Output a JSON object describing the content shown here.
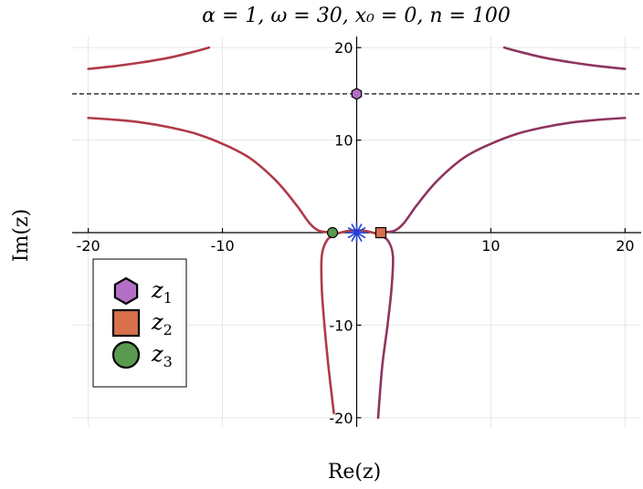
{
  "chart_data": {
    "type": "line",
    "title": "α = 1, ω = 30, x₀ = 0, n = 100",
    "xlabel": "Re(z)",
    "ylabel": "Im(z)",
    "xlim": [
      -21.2,
      21.2
    ],
    "ylim": [
      -21.0,
      21.2
    ],
    "x_ticks": [
      -20,
      -10,
      10,
      20
    ],
    "y_ticks": [
      20,
      10,
      -10,
      -20
    ],
    "x_tick_labels": [
      "-20",
      "-10",
      "10",
      "20"
    ],
    "y_tick_labels": [
      "20",
      "10",
      "-10",
      "-20"
    ],
    "grid": true,
    "reference_line": {
      "y": 15,
      "style": "dashed",
      "color": "#333333"
    },
    "contour_color": "#b03a48",
    "contour_color_alt": "#8e3560",
    "series": [
      {
        "points": [
          [
            -20,
            17.7
          ],
          [
            -18,
            18.0
          ],
          [
            -16,
            18.4
          ],
          [
            -14,
            18.9
          ],
          [
            -12,
            19.6
          ],
          [
            -11,
            20.0
          ]
        ]
      },
      {
        "points": [
          [
            11,
            20.0
          ],
          [
            12,
            19.6
          ],
          [
            14,
            18.9
          ],
          [
            16,
            18.4
          ],
          [
            18,
            18.0
          ],
          [
            20,
            17.7
          ]
        ]
      },
      {
        "points": [
          [
            -20,
            12.4
          ],
          [
            -18,
            12.2
          ],
          [
            -16,
            11.9
          ],
          [
            -14,
            11.4
          ],
          [
            -12,
            10.7
          ],
          [
            -10,
            9.6
          ],
          [
            -8,
            8.1
          ],
          [
            -6,
            5.6
          ],
          [
            -4.5,
            3.0
          ],
          [
            -3.5,
            1.0
          ],
          [
            -2.8,
            0.2
          ],
          [
            -2.0,
            0.05
          ]
        ]
      },
      {
        "points": [
          [
            2.0,
            0.05
          ],
          [
            2.8,
            0.2
          ],
          [
            3.5,
            1.0
          ],
          [
            4.5,
            3.0
          ],
          [
            6,
            5.6
          ],
          [
            8,
            8.1
          ],
          [
            10,
            9.6
          ],
          [
            12,
            10.7
          ],
          [
            14,
            11.4
          ],
          [
            16,
            11.9
          ],
          [
            18,
            12.2
          ],
          [
            20,
            12.4
          ]
        ]
      },
      {
        "points": [
          [
            -1.5,
            -0.1
          ],
          [
            -2.2,
            -0.8
          ],
          [
            -2.6,
            -2.5
          ],
          [
            -2.6,
            -6.0
          ],
          [
            -2.4,
            -10.0
          ],
          [
            -2.1,
            -14.5
          ],
          [
            -1.7,
            -19.5
          ]
        ]
      },
      {
        "points": [
          [
            1.5,
            -0.1
          ],
          [
            2.3,
            -0.8
          ],
          [
            2.7,
            -2.5
          ],
          [
            2.6,
            -6.0
          ],
          [
            2.3,
            -10.0
          ],
          [
            1.9,
            -14.5
          ],
          [
            1.6,
            -20.0
          ]
        ]
      },
      {
        "points": [
          [
            -2.0,
            0.05
          ],
          [
            -1.5,
            -0.1
          ],
          [
            -0.8,
            0.15
          ],
          [
            0,
            0.25
          ],
          [
            0.8,
            0.15
          ],
          [
            1.5,
            -0.1
          ],
          [
            2.0,
            0.05
          ]
        ]
      }
    ],
    "markers": [
      {
        "name": "z1",
        "shape": "hexagon",
        "x": 0,
        "y": 15,
        "color": "#b36fc4"
      },
      {
        "name": "z2",
        "shape": "square",
        "x": 1.8,
        "y": 0,
        "color": "#d8704c"
      },
      {
        "name": "z3",
        "shape": "circle",
        "x": -1.8,
        "y": 0,
        "color": "#5a9a4e"
      },
      {
        "name": "origin",
        "shape": "star",
        "x": 0,
        "y": 0,
        "color": "#1f3fd8"
      }
    ],
    "legend": {
      "placement": "bottom-left",
      "entries": [
        {
          "label": "z",
          "sub": "1",
          "shape": "hexagon",
          "color": "#b36fc4"
        },
        {
          "label": "z",
          "sub": "2",
          "shape": "square",
          "color": "#d8704c"
        },
        {
          "label": "z",
          "sub": "3",
          "shape": "circle",
          "color": "#5a9a4e"
        }
      ]
    }
  }
}
